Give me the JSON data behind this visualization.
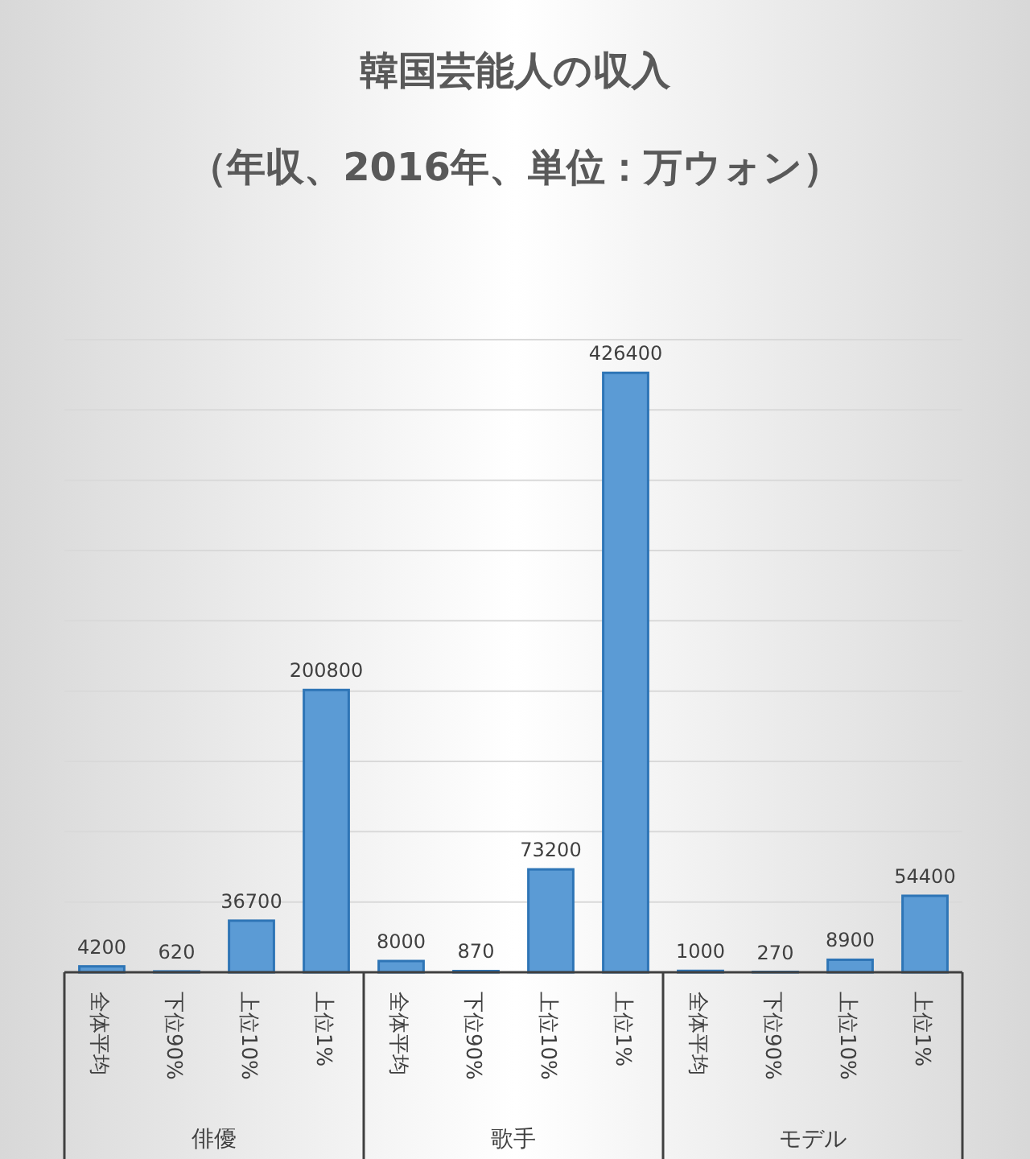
{
  "chart_data": {
    "type": "bar",
    "title": "韓国芸能人の収入",
    "subtitle": "（年収、2016年、単位：万ウォン）",
    "categories": [
      "全体平均",
      "下位90%",
      "上位10%",
      "上位1%",
      "全体平均",
      "下位90%",
      "上位10%",
      "上位1%",
      "全体平均",
      "下位90%",
      "上位10%",
      "上位1%"
    ],
    "values": [
      4200,
      620,
      36700,
      200800,
      8000,
      870,
      73200,
      426400,
      1000,
      270,
      8900,
      54400
    ],
    "color": "#5b9bd5",
    "data_labels": true,
    "grid": "y",
    "tick_labels": "x",
    "ylim": [
      0,
      450000
    ],
    "yticks": [
      {
        "value": 0,
        "label": null
      },
      {
        "value": 50000,
        "label": null
      },
      {
        "value": 100000,
        "label": null
      },
      {
        "value": 150000,
        "label": null
      },
      {
        "value": 200000,
        "label": null
      },
      {
        "value": 250000,
        "label": null
      },
      {
        "value": 300000,
        "label": null
      },
      {
        "value": 350000,
        "label": null
      },
      {
        "value": 400000,
        "label": null
      },
      {
        "value": 450000,
        "label": null
      }
    ],
    "annotations": [
      "俳優",
      "歌手",
      "モデル"
    ]
  }
}
